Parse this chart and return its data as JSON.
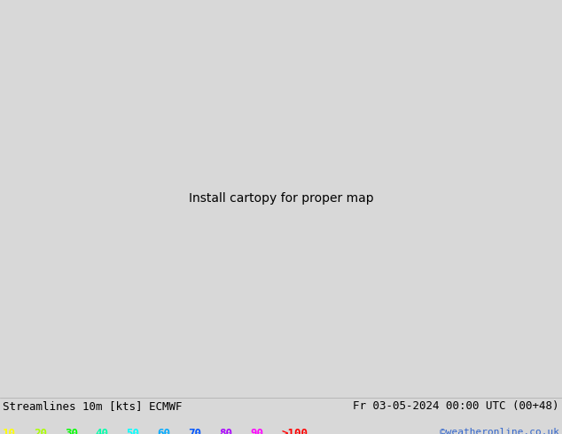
{
  "title_left": "Streamlines 10m [kts] ECMWF",
  "title_right": "Fr 03-05-2024 00:00 UTC (00+48)",
  "watermark": "©weatheronline.co.uk",
  "legend_values": [
    "10",
    "20",
    "30",
    "40",
    "50",
    "60",
    "70",
    "80",
    "90",
    ">100"
  ],
  "legend_colors": [
    "#ffff00",
    "#aaff00",
    "#00ff00",
    "#00ffaa",
    "#00ffff",
    "#00aaff",
    "#0055ff",
    "#aa00ff",
    "#ff00ff",
    "#ff0000"
  ],
  "bg_color": "#d8d8d8",
  "land_color": "#c8f0c0",
  "sea_color": "#e0e0e0",
  "border_color": "#111111",
  "fig_width": 6.34,
  "fig_height": 4.9,
  "dpi": 100,
  "title_fontsize": 9,
  "legend_fontsize": 9,
  "lon_min": 3.0,
  "lon_max": 32.0,
  "lat_min": 54.0,
  "lat_max": 72.0
}
